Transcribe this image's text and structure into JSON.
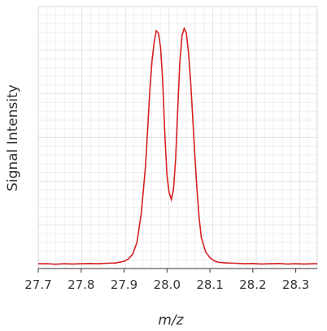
{
  "chart_data": {
    "type": "line",
    "title": "",
    "xlabel": "m/z",
    "ylabel": "Signal Intensity",
    "xlim": [
      27.7,
      28.35
    ],
    "ylim": [
      0,
      1.0
    ],
    "x_ticks": [
      "27.7",
      "27.8",
      "27.9",
      "28.0",
      "28.1",
      "28.2",
      "28.3"
    ],
    "grid": true,
    "line_color": "#d62020",
    "series": [
      {
        "x": [
          27.7,
          27.72,
          27.74,
          27.76,
          27.78,
          27.8,
          27.82,
          27.84,
          27.86,
          27.88,
          27.9,
          27.91,
          27.92,
          27.93,
          27.94,
          27.95,
          27.955,
          27.96,
          27.965,
          27.97,
          27.975,
          27.98,
          27.985,
          27.99,
          27.995,
          28.0,
          28.005,
          28.01,
          28.015,
          28.02,
          28.025,
          28.03,
          28.035,
          28.04,
          28.045,
          28.05,
          28.055,
          28.06,
          28.065,
          28.07,
          28.075,
          28.08,
          28.09,
          28.1,
          28.11,
          28.12,
          28.14,
          28.16,
          28.18,
          28.2,
          28.22,
          28.24,
          28.26,
          28.28,
          28.3,
          28.32,
          28.34,
          28.35
        ],
        "y": [
          0.01,
          0.01,
          0.008,
          0.01,
          0.009,
          0.01,
          0.011,
          0.01,
          0.012,
          0.013,
          0.02,
          0.03,
          0.05,
          0.1,
          0.22,
          0.42,
          0.58,
          0.74,
          0.86,
          0.94,
          0.99,
          0.98,
          0.92,
          0.78,
          0.55,
          0.38,
          0.31,
          0.28,
          0.32,
          0.45,
          0.66,
          0.86,
          0.97,
          1.0,
          0.98,
          0.9,
          0.78,
          0.62,
          0.46,
          0.32,
          0.2,
          0.12,
          0.06,
          0.035,
          0.022,
          0.016,
          0.013,
          0.012,
          0.01,
          0.011,
          0.009,
          0.01,
          0.011,
          0.009,
          0.01,
          0.009,
          0.01,
          0.01
        ]
      }
    ]
  }
}
